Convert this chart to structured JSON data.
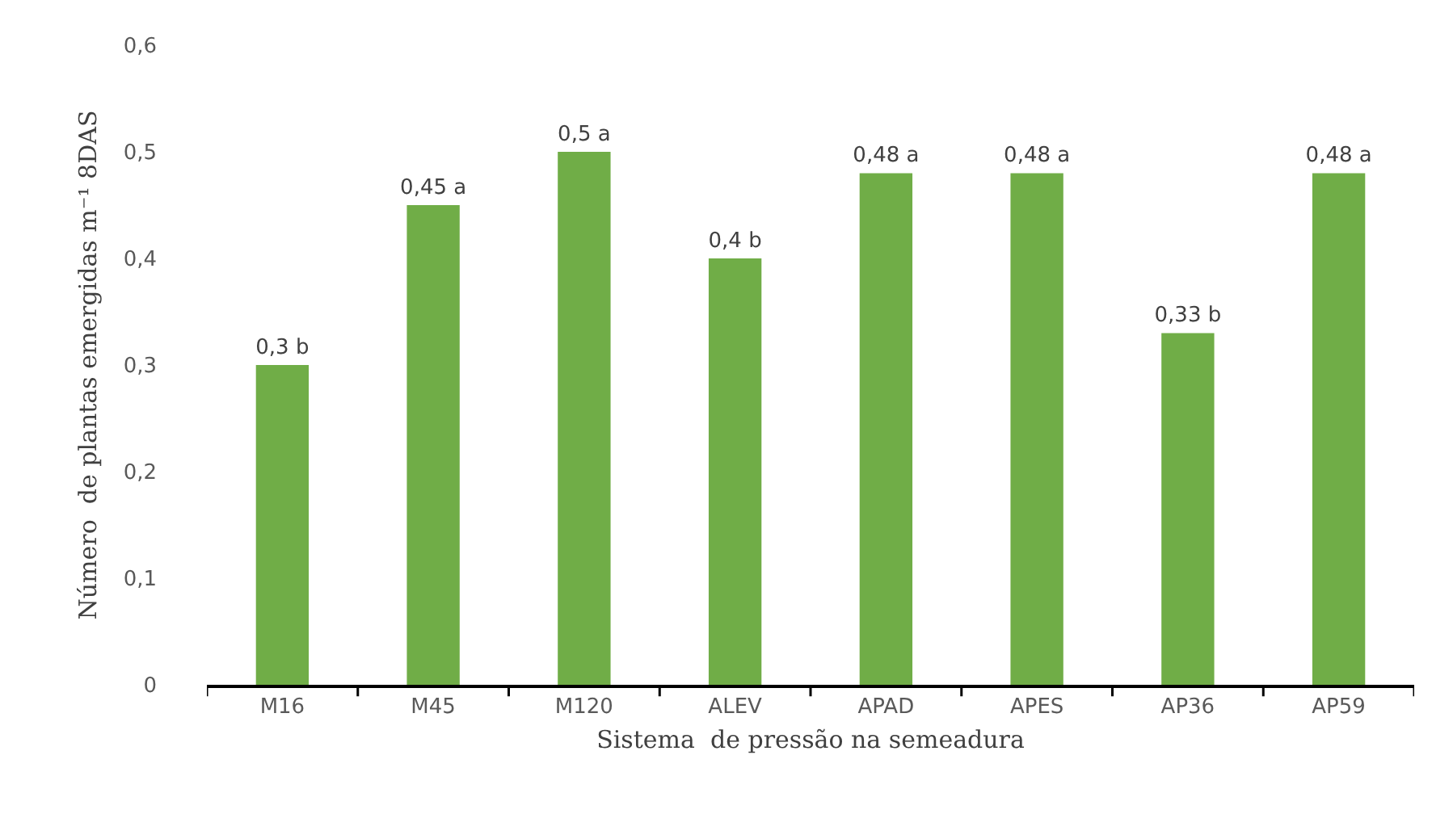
{
  "chart_data": {
    "type": "bar",
    "xlabel": "Sistema  de pressão na semeadura",
    "ylabel": "Número  de plantas emergidas m⁻¹ 8DAS",
    "categories": [
      "M16",
      "M45",
      "M120",
      "ALEV",
      "APAD",
      "APES",
      "AP36",
      "AP59"
    ],
    "values": [
      0.3,
      0.45,
      0.5,
      0.4,
      0.48,
      0.48,
      0.33,
      0.48
    ],
    "value_labels": [
      "0,3 b",
      "0,45 a",
      "0,5 a",
      "0,4 b",
      "0,48 a",
      "0,48 a",
      "0,33 b",
      "0,48 a"
    ],
    "color": "#70ad47",
    "ylim": [
      0,
      0.6
    ],
    "yticks": [
      0,
      {
        "value": 0.1,
        "label": "0,1"
      },
      {
        "value": 0.2,
        "label": "0,2"
      },
      {
        "value": 0.3,
        "label": "0,3"
      },
      {
        "value": 0.4,
        "label": "0,4"
      },
      {
        "value": 0.5,
        "label": "0,5"
      },
      {
        "value": 0.6,
        "label": "0,6"
      }
    ],
    "grid": false
  }
}
